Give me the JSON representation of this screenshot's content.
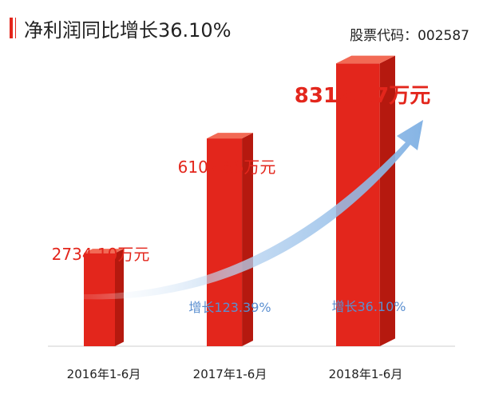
{
  "header": {
    "title": "净利润同比增长36.10%",
    "stock_code": "股票代码：002587"
  },
  "colors": {
    "accent": "#e3261c",
    "bar_front": "#e3261c",
    "bar_side": "#b5190f",
    "bar_top": "#f26a55",
    "arrow": "#9cc3ea",
    "growth_text": "#5a8fd0"
  },
  "chart_data": {
    "type": "bar",
    "categories": [
      "2016年1-6月",
      "2017年1-6月",
      "2018年1-6月"
    ],
    "values": [
      2734.1,
      6107.66,
      8312.67
    ],
    "value_labels": [
      "2734.10万元",
      "6107.66万元",
      "8312.67万元"
    ],
    "growth_labels": [
      "",
      "增长123.39%",
      "增长36.10%"
    ],
    "unit": "万元",
    "ylim": [
      0,
      9000
    ],
    "trend_arrow": true,
    "grid": false,
    "legend": "none"
  }
}
